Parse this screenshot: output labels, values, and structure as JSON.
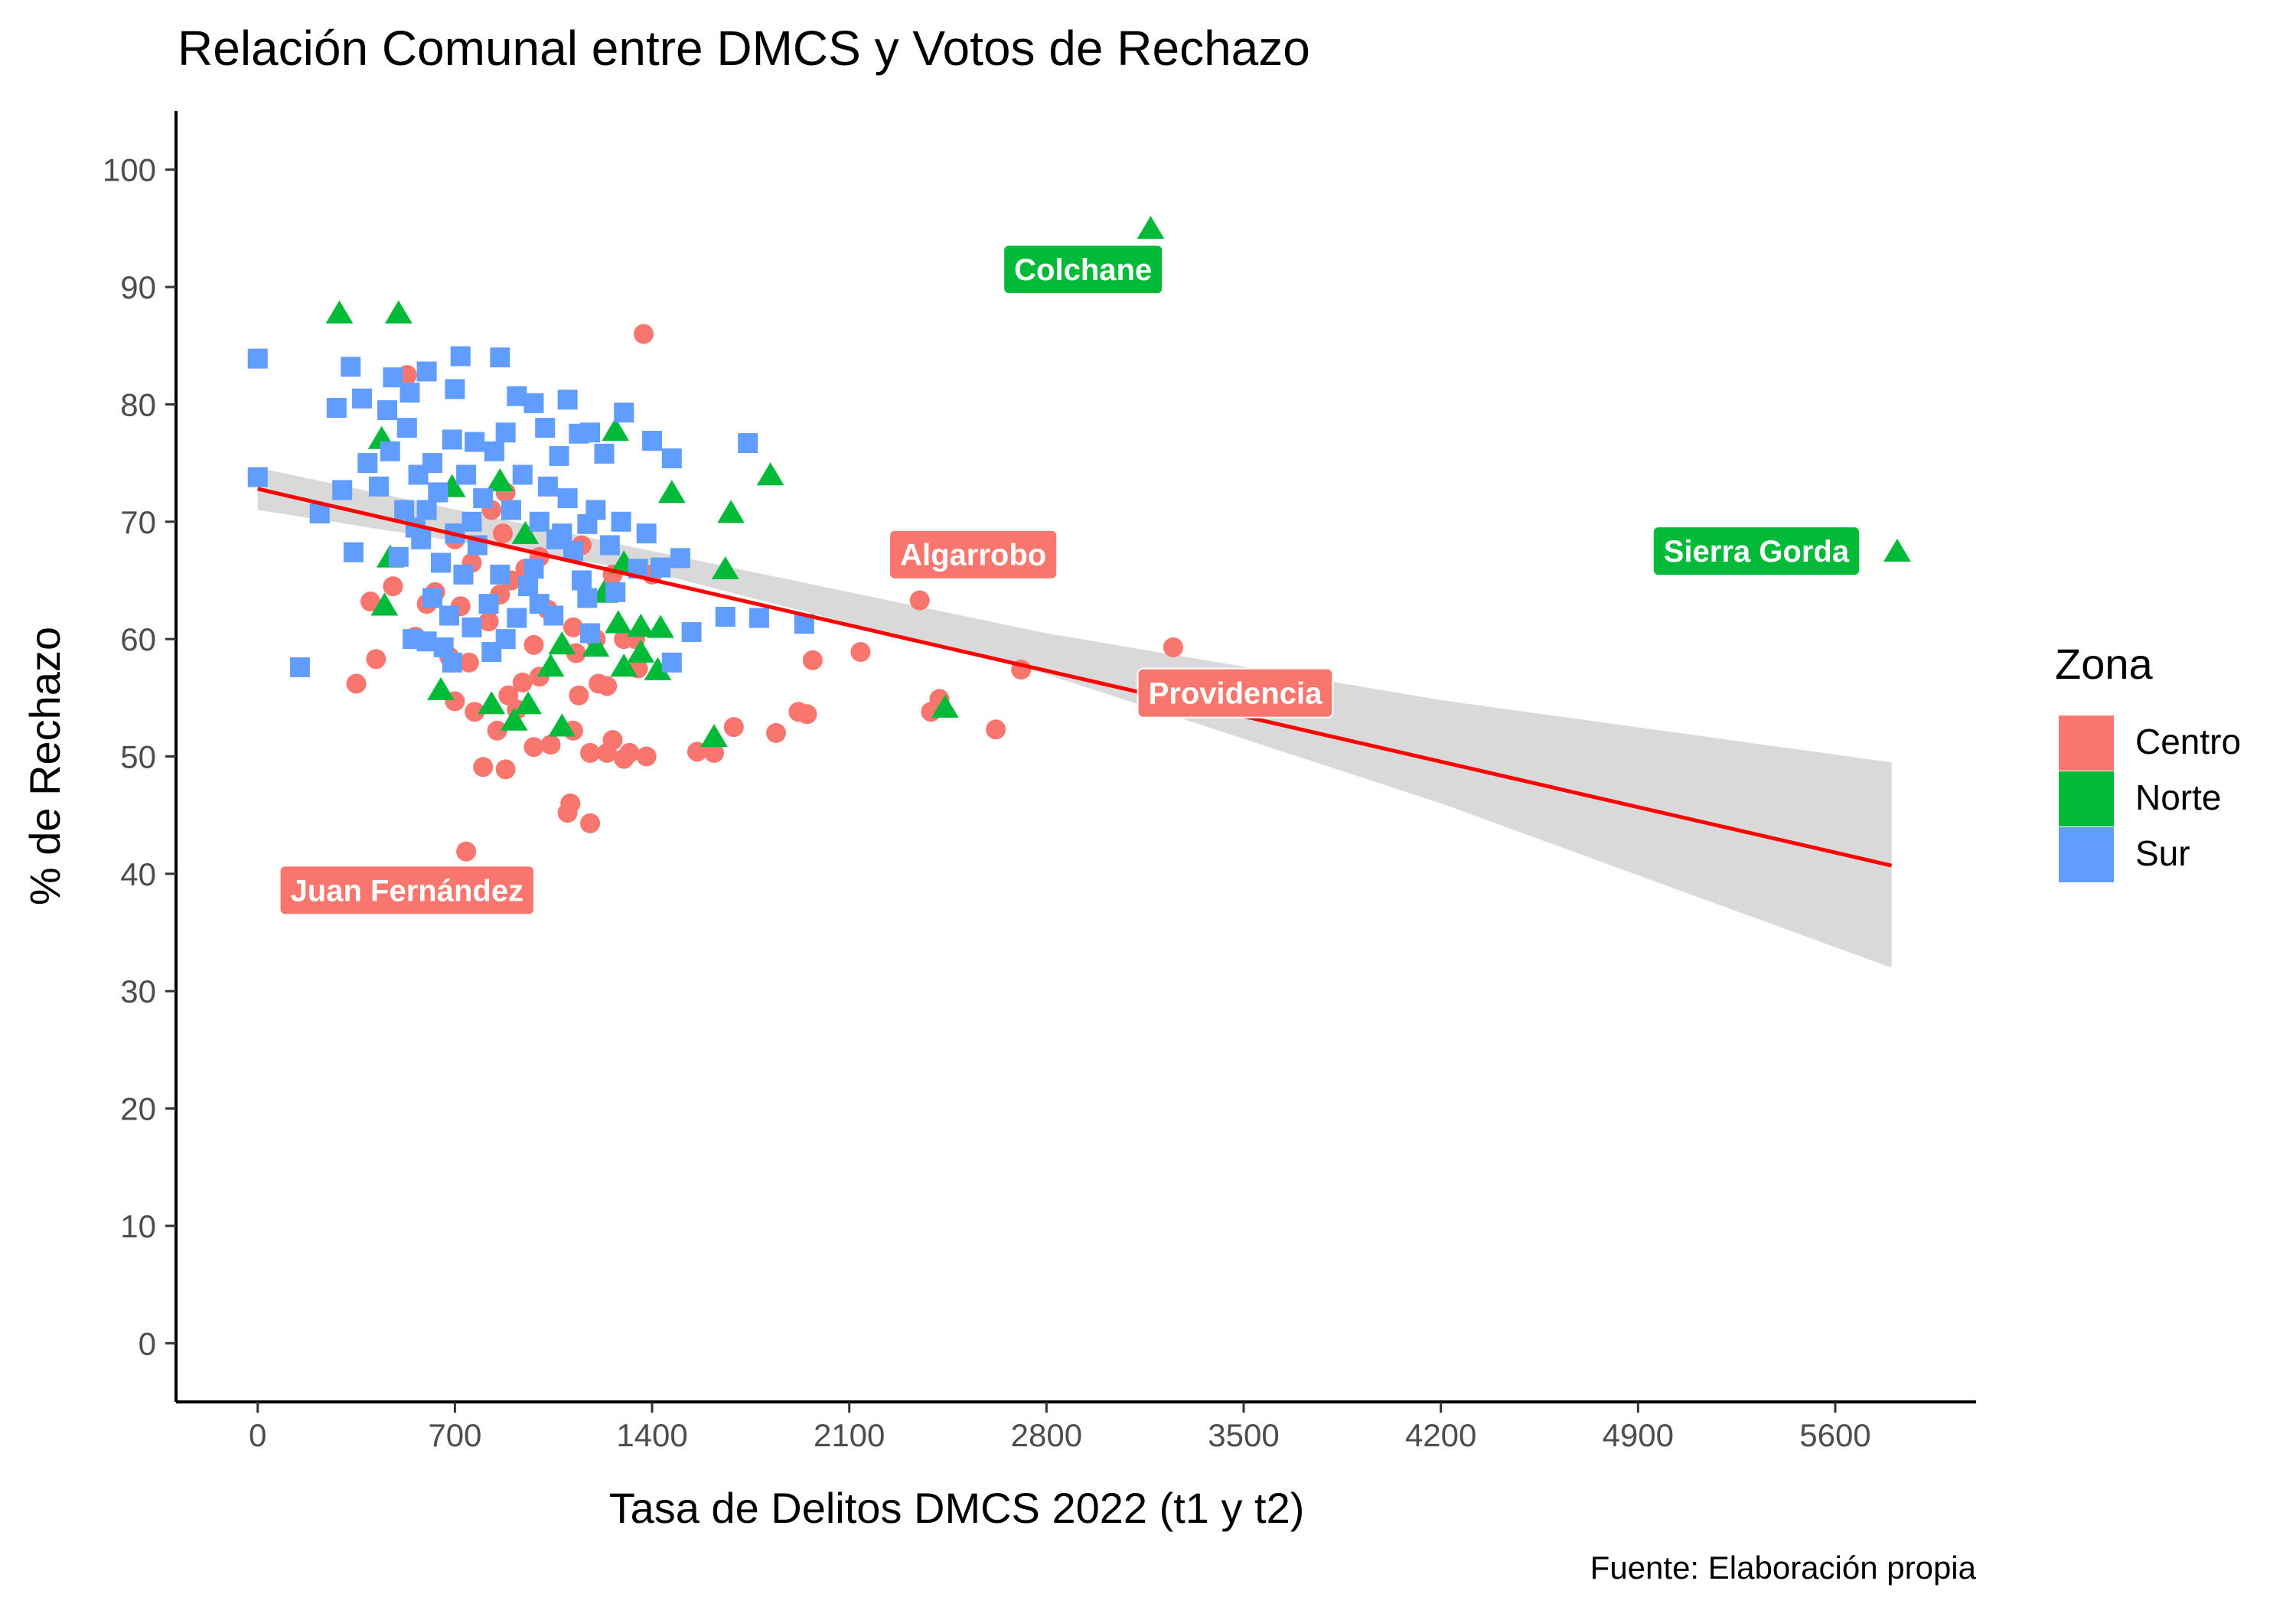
{
  "chart_data": {
    "type": "scatter",
    "title": "Relación Comunal entre DMCS y Votos de Rechazo",
    "xlabel": "Tasa de Delitos DMCS 2022 (t1 y t2)",
    "ylabel": "% de Rechazo",
    "caption": "Fuente: Elaboración propia",
    "xlim": [
      -290,
      6100
    ],
    "ylim": [
      -5,
      105
    ],
    "x_ticks": [
      "0",
      "700",
      "1400",
      "2100",
      "2800",
      "3500",
      "4200",
      "4900",
      "5600"
    ],
    "y_ticks": [
      "0",
      "10",
      "20",
      "30",
      "40",
      "50",
      "60",
      "70",
      "80",
      "90",
      "100"
    ],
    "grid": false,
    "legend": {
      "title": "Zona",
      "position": "right",
      "entries": [
        "Centro",
        "Norte",
        "Sur"
      ]
    },
    "colors": {
      "Centro": "#F8766D",
      "Norte": "#00BA38",
      "Sur": "#619CFF",
      "trend_line": "#FF0000",
      "ribbon": "#D9D9D9"
    },
    "trend": {
      "type": "linear",
      "line": [
        [
          0,
          72.8
        ],
        [
          5800,
          40.7
        ]
      ],
      "ci_upper": [
        [
          0,
          74.6
        ],
        [
          1400,
          67.5
        ],
        [
          2800,
          60.5
        ],
        [
          4200,
          54.8
        ],
        [
          5800,
          49.5
        ]
      ],
      "ci_lower": [
        [
          0,
          71.0
        ],
        [
          1400,
          65.7
        ],
        [
          2800,
          57.0
        ],
        [
          4200,
          46.0
        ],
        [
          5800,
          32.0
        ]
      ]
    },
    "series": [
      {
        "name": "Centro",
        "shape": "circle",
        "points": [
          [
            1370,
            86
          ],
          [
            530,
            82.5
          ],
          [
            880,
            72.5
          ],
          [
            830,
            71
          ],
          [
            870,
            69
          ],
          [
            700,
            68.5
          ],
          [
            1150,
            68
          ],
          [
            1000,
            67
          ],
          [
            760,
            66.5
          ],
          [
            950,
            66
          ],
          [
            1260,
            65.5
          ],
          [
            1400,
            65.5
          ],
          [
            900,
            65
          ],
          [
            480,
            64.5
          ],
          [
            630,
            64
          ],
          [
            860,
            63.8
          ],
          [
            400,
            63.2
          ],
          [
            600,
            63
          ],
          [
            720,
            62.8
          ],
          [
            1030,
            62.5
          ],
          [
            820,
            61.5
          ],
          [
            1120,
            61
          ],
          [
            560,
            60.2
          ],
          [
            1200,
            60
          ],
          [
            1300,
            60
          ],
          [
            1340,
            60
          ],
          [
            980,
            59.5
          ],
          [
            1130,
            58.8
          ],
          [
            680,
            58.5
          ],
          [
            420,
            58.3
          ],
          [
            750,
            58
          ],
          [
            1350,
            57.5
          ],
          [
            1000,
            56.8
          ],
          [
            940,
            56.3
          ],
          [
            1210,
            56.2
          ],
          [
            350,
            56.2
          ],
          [
            1240,
            56
          ],
          [
            890,
            55.2
          ],
          [
            1140,
            55.2
          ],
          [
            700,
            54.7
          ],
          [
            920,
            54
          ],
          [
            770,
            53.8
          ],
          [
            850,
            52.2
          ],
          [
            1120,
            52.2
          ],
          [
            1260,
            51.4
          ],
          [
            1040,
            51
          ],
          [
            980,
            50.8
          ],
          [
            1180,
            50.3
          ],
          [
            1320,
            50.3
          ],
          [
            1240,
            50.3
          ],
          [
            1380,
            50
          ],
          [
            1300,
            49.8
          ],
          [
            800,
            49.1
          ],
          [
            880,
            48.9
          ],
          [
            1110,
            46
          ],
          [
            1100,
            45.2
          ],
          [
            1180,
            44.3
          ],
          [
            740,
            41.9
          ],
          [
            1560,
            50.4
          ],
          [
            1620,
            50.3
          ],
          [
            1690,
            52.5
          ],
          [
            1840,
            52
          ],
          [
            1920,
            53.8
          ],
          [
            1950,
            53.6
          ],
          [
            1970,
            58.2
          ],
          [
            2140,
            58.9
          ],
          [
            2350,
            63.3
          ],
          [
            2390,
            53.8
          ],
          [
            2420,
            54.9
          ],
          [
            2620,
            52.3
          ],
          [
            2710,
            57.4
          ],
          [
            3250,
            59.3
          ]
        ]
      },
      {
        "name": "Norte",
        "shape": "triangle",
        "points": [
          [
            290,
            87.8
          ],
          [
            500,
            87.8
          ],
          [
            3170,
            95
          ],
          [
            5820,
            67.5
          ],
          [
            1270,
            77.8
          ],
          [
            1820,
            74
          ],
          [
            440,
            77.1
          ],
          [
            1470,
            72.5
          ],
          [
            1680,
            70.8
          ],
          [
            950,
            69
          ],
          [
            1660,
            66
          ],
          [
            1300,
            66.5
          ],
          [
            1230,
            64
          ],
          [
            450,
            62.9
          ],
          [
            1280,
            61.4
          ],
          [
            1360,
            61.1
          ],
          [
            1430,
            61
          ],
          [
            1080,
            59.6
          ],
          [
            1200,
            59.4
          ],
          [
            1040,
            57.7
          ],
          [
            1300,
            57.7
          ],
          [
            1420,
            57.4
          ],
          [
            1360,
            58.9
          ],
          [
            650,
            55.7
          ],
          [
            830,
            54.5
          ],
          [
            960,
            54.5
          ],
          [
            910,
            53.1
          ],
          [
            1080,
            52.6
          ],
          [
            1620,
            51.7
          ],
          [
            2440,
            54.2
          ],
          [
            470,
            67
          ],
          [
            690,
            73
          ],
          [
            860,
            73.5
          ]
        ]
      },
      {
        "name": "Sur",
        "shape": "square",
        "points": [
          [
            0,
            83.9
          ],
          [
            0,
            73.8
          ],
          [
            150,
            57.6
          ],
          [
            280,
            79.7
          ],
          [
            330,
            83.2
          ],
          [
            370,
            80.5
          ],
          [
            300,
            72.7
          ],
          [
            340,
            67.4
          ],
          [
            220,
            70.7
          ],
          [
            390,
            75
          ],
          [
            460,
            79.5
          ],
          [
            480,
            82.3
          ],
          [
            540,
            81
          ],
          [
            600,
            82.8
          ],
          [
            700,
            81.3
          ],
          [
            720,
            84.1
          ],
          [
            860,
            84
          ],
          [
            920,
            80.7
          ],
          [
            980,
            80.1
          ],
          [
            1100,
            80.4
          ],
          [
            1300,
            79.3
          ],
          [
            1020,
            78
          ],
          [
            1140,
            77.5
          ],
          [
            1180,
            77.6
          ],
          [
            880,
            77.6
          ],
          [
            770,
            76.8
          ],
          [
            1740,
            76.7
          ],
          [
            1230,
            75.8
          ],
          [
            1070,
            75.6
          ],
          [
            1470,
            75.4
          ],
          [
            1400,
            76.9
          ],
          [
            1540,
            60.6
          ],
          [
            1660,
            61.9
          ],
          [
            1780,
            61.8
          ],
          [
            1940,
            61.3
          ],
          [
            1150,
            65
          ],
          [
            1500,
            66.9
          ],
          [
            1430,
            66.1
          ],
          [
            1380,
            69
          ],
          [
            1170,
            69.8
          ],
          [
            600,
            59.8
          ],
          [
            660,
            59.3
          ],
          [
            690,
            58
          ],
          [
            830,
            58.9
          ],
          [
            920,
            61.8
          ],
          [
            1050,
            62
          ],
          [
            1180,
            60.5
          ],
          [
            1470,
            58
          ],
          [
            550,
            60
          ],
          [
            520,
            71
          ],
          [
            640,
            72.5
          ],
          [
            760,
            70
          ],
          [
            500,
            67
          ],
          [
            580,
            68.5
          ],
          [
            620,
            75
          ],
          [
            690,
            77
          ],
          [
            740,
            74
          ],
          [
            800,
            72
          ],
          [
            900,
            71
          ],
          [
            1000,
            70
          ],
          [
            1080,
            69
          ],
          [
            1250,
            68
          ],
          [
            1350,
            66
          ],
          [
            1270,
            64
          ],
          [
            960,
            64.5
          ],
          [
            860,
            65.5
          ],
          [
            730,
            65.5
          ],
          [
            650,
            66.5
          ],
          [
            560,
            69.5
          ],
          [
            430,
            73
          ],
          [
            470,
            76
          ],
          [
            530,
            78
          ],
          [
            570,
            74
          ],
          [
            600,
            71
          ],
          [
            700,
            69
          ],
          [
            780,
            68
          ],
          [
            840,
            76
          ],
          [
            940,
            74
          ],
          [
            1030,
            73
          ],
          [
            1100,
            72
          ],
          [
            1200,
            71
          ],
          [
            1290,
            70
          ],
          [
            1120,
            67.5
          ],
          [
            980,
            66
          ],
          [
            820,
            63
          ],
          [
            680,
            62
          ],
          [
            620,
            63.5
          ],
          [
            760,
            61
          ],
          [
            880,
            60
          ],
          [
            1000,
            63
          ],
          [
            1060,
            68.5
          ],
          [
            1170,
            63.5
          ]
        ]
      }
    ],
    "callouts": [
      {
        "label": "Colchane",
        "zone": "Norte",
        "x": 2930,
        "y": 91.5
      },
      {
        "label": "Sierra Gorda",
        "zone": "Norte",
        "x": 5320,
        "y": 67.5
      },
      {
        "label": "Algarrobo",
        "zone": "Centro",
        "x": 2540,
        "y": 67.2
      },
      {
        "label": "Providencia",
        "zone": "Centro",
        "x": 3470,
        "y": 55.4
      },
      {
        "label": "Juan Fernández",
        "zone": "Centro",
        "x": 530,
        "y": 38.6
      }
    ]
  }
}
